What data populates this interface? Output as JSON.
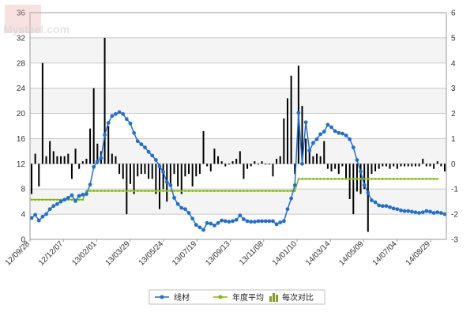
{
  "watermark": "Mysteel.com",
  "chart_data": {
    "type": "line",
    "title": "",
    "xlabel": "",
    "ylabel": "",
    "ylim": [
      0,
      36
    ],
    "y2lim": [
      -3,
      6
    ],
    "y_ticks": [
      0,
      4,
      8,
      12,
      16,
      20,
      24,
      28,
      32,
      36
    ],
    "y2_ticks": [
      -3,
      -2,
      -1,
      0,
      1,
      2,
      3,
      4,
      5,
      6
    ],
    "x_ticks": [
      "12/09/28",
      "12/12/07",
      "13/02/01",
      "13/03/29",
      "13/05/24",
      "13/07/19",
      "13/09/13",
      "13/11/08",
      "14/01/10",
      "14/03/14",
      "14/05/09",
      "14/07/04",
      "14/08/29"
    ],
    "grid": true,
    "legend_position": "bottom",
    "legend": [
      {
        "name": "线材",
        "kind": "line-dot",
        "color": "#1f6fd1"
      },
      {
        "name": "年度平均",
        "kind": "line-dot",
        "color": "#88b800"
      },
      {
        "name": "每次对比",
        "kind": "bars",
        "color": "#8a9a1a"
      }
    ],
    "colors": {
      "main": "#1f6fd1",
      "average": "#7fb800",
      "bars": "#000000",
      "plot_bg": "#ffffff",
      "stripe": "#f4f4f4",
      "grid": "#c8c8c8"
    },
    "series": [
      {
        "name": "线材",
        "axis": "left",
        "values": [
          3.4,
          3.9,
          3.0,
          3.6,
          4.0,
          4.8,
          5.3,
          5.6,
          6.0,
          6.3,
          6.6,
          7.0,
          6.1,
          6.9,
          7.1,
          7.2,
          8.7,
          11.5,
          12.4,
          12.9,
          16.6,
          18.5,
          19.6,
          19.9,
          20.2,
          19.9,
          19.1,
          18.4,
          16.9,
          15.6,
          15.1,
          14.6,
          13.9,
          13.3,
          12.6,
          11.6,
          10.7,
          9.1,
          8.6,
          6.6,
          5.6,
          5.0,
          4.8,
          4.2,
          3.3,
          2.3,
          1.9,
          1.5,
          2.6,
          2.5,
          2.2,
          2.6,
          3.0,
          2.9,
          2.8,
          2.9,
          3.1,
          3.8,
          3.2,
          2.9,
          2.8,
          2.8,
          2.9,
          2.9,
          2.9,
          2.9,
          2.9,
          2.4,
          2.7,
          2.9,
          4.8,
          6.5,
          8.6,
          20.1,
          12.0,
          18.6,
          14.1,
          15.3,
          15.9,
          16.7,
          17.1,
          18.2,
          17.8,
          17.2,
          16.9,
          16.8,
          16.5,
          15.9,
          14.6,
          12.6,
          10.8,
          8.6,
          7.4,
          6.2,
          5.9,
          5.4,
          5.3,
          5.3,
          5.1,
          4.9,
          4.8,
          4.6,
          4.5,
          4.5,
          4.4,
          4.3,
          4.2,
          4.3,
          4.5,
          4.4,
          4.2,
          4.3,
          4.2,
          4.0
        ]
      },
      {
        "name": "年度平均",
        "axis": "left",
        "values": [
          6.3,
          6.3,
          6.3,
          6.3,
          6.3,
          6.3,
          6.3,
          6.3,
          6.3,
          6.3,
          6.3,
          6.3,
          6.3,
          6.3,
          6.3,
          7.7,
          7.7,
          7.7,
          7.7,
          7.7,
          7.7,
          7.7,
          7.7,
          7.7,
          7.7,
          7.7,
          7.7,
          7.7,
          7.7,
          7.7,
          7.7,
          7.7,
          7.7,
          7.7,
          7.7,
          7.7,
          7.7,
          7.7,
          7.7,
          7.7,
          7.7,
          7.7,
          7.7,
          7.7,
          7.7,
          7.7,
          7.7,
          7.7,
          7.7,
          7.7,
          7.7,
          7.7,
          7.7,
          7.7,
          7.7,
          7.7,
          7.7,
          7.7,
          7.7,
          7.7,
          7.7,
          7.7,
          7.7,
          7.7,
          7.7,
          7.7,
          7.7,
          7.7,
          7.7,
          7.7,
          7.7,
          7.7,
          7.7,
          9.6,
          9.6,
          9.6,
          9.6,
          9.6,
          9.6,
          9.6,
          9.6,
          9.6,
          9.6,
          9.6,
          9.6,
          9.6,
          9.6,
          9.6,
          9.6,
          9.6,
          9.6,
          9.6,
          9.6,
          9.6,
          9.6,
          9.6,
          9.6,
          9.6,
          9.6,
          9.6,
          9.6,
          9.6,
          9.6,
          9.6,
          9.6,
          9.6,
          9.6,
          9.6,
          9.6,
          9.6,
          9.6,
          9.6
        ]
      },
      {
        "name": "每次对比",
        "axis": "right",
        "values": [
          -1.2,
          0.4,
          -0.9,
          4.0,
          0.3,
          0.9,
          0.5,
          0.3,
          0.3,
          0.3,
          0.4,
          -0.6,
          0.6,
          -0.2,
          0.1,
          0.2,
          1.4,
          3.0,
          0.8,
          0.5,
          5.0,
          1.5,
          0.4,
          0.3,
          -0.4,
          -0.6,
          -2.0,
          -0.8,
          -1.2,
          -0.5,
          -0.4,
          -0.4,
          -0.6,
          -0.6,
          -1.2,
          -1.8,
          -1.0,
          -1.5,
          -0.9,
          -0.4,
          -0.9,
          -1.2,
          -0.5,
          -0.4,
          -0.9,
          -0.5,
          -0.4,
          1.3,
          -0.1,
          -0.3,
          0.6,
          0.3,
          0.1,
          -0.1,
          0.0,
          0.1,
          0.2,
          0.5,
          -0.6,
          -0.2,
          -0.1,
          0.1,
          0.0,
          0.1,
          0.0,
          0.0,
          -0.5,
          0.2,
          0.3,
          1.8,
          2.6,
          3.5,
          -0.4,
          3.9,
          2.3,
          1.0,
          0.6,
          0.3,
          0.4,
          0.3,
          0.9,
          -0.2,
          -0.3,
          -0.2,
          -0.4,
          -0.1,
          -0.6,
          -1.4,
          -2.0,
          -1.1,
          -1.2,
          -1.0,
          -2.7,
          -0.4,
          -0.3,
          -0.2,
          -0.1,
          -0.1,
          -0.2,
          -0.1,
          -0.2,
          -0.1,
          -0.1,
          -0.1,
          -0.1,
          -0.1,
          -0.1,
          0.2,
          -0.1,
          -0.1,
          -0.2,
          0.1,
          -0.1,
          -0.3
        ]
      }
    ]
  }
}
